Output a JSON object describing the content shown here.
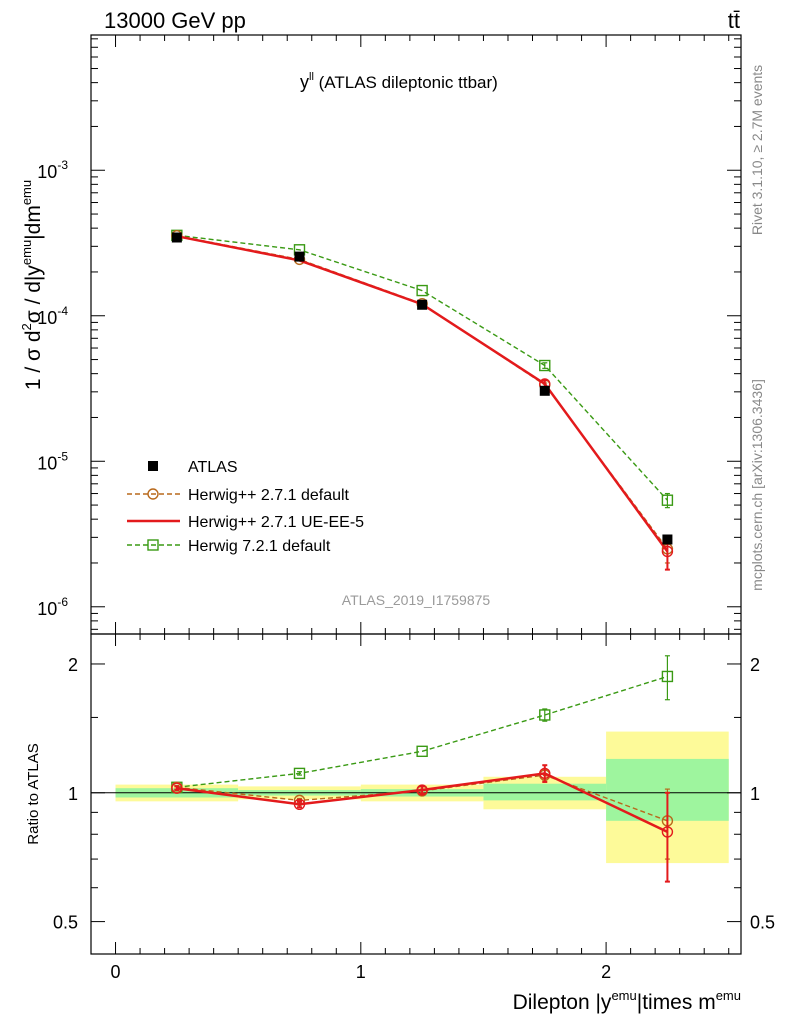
{
  "header": {
    "energy_label": "13000 GeV pp",
    "process_label": "tt̄"
  },
  "side_labels": {
    "rivet": "Rivet 3.1.10, ≥ 2.7M events",
    "source": "mcplots.cern.ch [arXiv:1306.3436]"
  },
  "chart_data": [
    {
      "type": "scatter",
      "panel": "main",
      "title_main": "y",
      "title_sup": "ll",
      "title_rest": " (ATLAS dileptonic ttbar)",
      "ylabel": "1 / σ  d²σ / d|y^emu|dm^emu",
      "ylabel_parts": {
        "p1": "1 / σ  d",
        "s1": "2",
        "p2": "σ / d|y",
        "s2": "emu",
        "p3": "|dm",
        "s3": "emu"
      },
      "xlabel_parts": {
        "p1": "Dilepton |y",
        "s1": "emu",
        "p2": "|times m",
        "s2": "emu"
      },
      "yscale": "log",
      "ylim": [
        6.5e-07,
        0.0085
      ],
      "xlim": [
        -0.1,
        2.55
      ],
      "x_ticks": [
        0,
        1,
        2
      ],
      "y_ticks": [
        {
          "value": 0.001,
          "base": "10",
          "exp": "-3"
        },
        {
          "value": 0.0001,
          "base": "10",
          "exp": "-4"
        },
        {
          "value": 1e-05,
          "base": "10",
          "exp": "-5"
        },
        {
          "value": 1e-06,
          "base": "10",
          "exp": "-6"
        }
      ],
      "watermark": "ATLAS_2019_I1759875",
      "legend_position": "lower-left",
      "x": [
        0.25,
        0.75,
        1.25,
        1.75,
        2.25
      ],
      "series": [
        {
          "name": "ATLAS",
          "style": "data",
          "color": "#000000",
          "values": [
            0.000345,
            0.000255,
            0.000119,
            3.05e-05,
            2.9e-06
          ]
        },
        {
          "name": "Herwig++ 2.7.1 default",
          "style": "circle-dashed",
          "color": "#b8691c",
          "values": [
            0.000355,
            0.000244,
            0.000121,
            3.35e-05,
            2.5e-06
          ],
          "errors": [
            4e-06,
            4e-06,
            2e-06,
            1e-06,
            5e-07
          ]
        },
        {
          "name": "Herwig++ 2.7.1 UE-EE-5",
          "style": "solid",
          "color": "#e31a1c",
          "values": [
            0.000352,
            0.00024,
            0.00012,
            3.4e-05,
            2.4e-06
          ],
          "errors": [
            4e-06,
            4e-06,
            2e-06,
            2e-06,
            6e-07
          ]
        },
        {
          "name": "Herwig 7.2.1 default",
          "style": "square-dashed",
          "color": "#3a9a14",
          "values": [
            0.000357,
            0.000284,
            0.000149,
            4.55e-05,
            5.4e-06
          ],
          "errors": [
            4e-06,
            4e-06,
            2e-06,
            2e-06,
            6e-07
          ]
        }
      ]
    },
    {
      "type": "scatter",
      "panel": "ratio",
      "ylabel": "Ratio to ATLAS",
      "yscale": "log",
      "ylim": [
        0.42,
        2.35
      ],
      "y_ticks": [
        0.5,
        1,
        2
      ],
      "y_tick_labels": [
        "0.5",
        "1",
        "2"
      ],
      "x": [
        0.25,
        0.75,
        1.25,
        1.75,
        2.25
      ],
      "bands": [
        {
          "x_low": 0.0,
          "x_high": 0.5,
          "inner": [
            0.975,
            1.025
          ],
          "outer": [
            0.955,
            1.045
          ]
        },
        {
          "x_low": 0.5,
          "x_high": 1.0,
          "inner": [
            0.985,
            1.015
          ],
          "outer": [
            0.965,
            1.035
          ]
        },
        {
          "x_low": 1.0,
          "x_high": 1.5,
          "inner": [
            0.98,
            1.02
          ],
          "outer": [
            0.955,
            1.045
          ]
        },
        {
          "x_low": 1.5,
          "x_high": 2.0,
          "inner": [
            0.96,
            1.05
          ],
          "outer": [
            0.915,
            1.09
          ]
        },
        {
          "x_low": 2.0,
          "x_high": 2.5,
          "inner": [
            0.86,
            1.2
          ],
          "outer": [
            0.685,
            1.39
          ]
        }
      ],
      "series": [
        {
          "name": "Herwig++ 2.7.1 default",
          "style": "circle-dashed",
          "color": "#b8691c",
          "values": [
            1.03,
            0.96,
            1.01,
            1.1,
            0.86
          ],
          "errors": [
            0.01,
            0.01,
            0.01,
            0.03,
            0.16
          ]
        },
        {
          "name": "Herwig++ 2.7.1 UE-EE-5",
          "style": "solid",
          "color": "#e31a1c",
          "values": [
            1.025,
            0.94,
            1.015,
            1.11,
            0.81
          ],
          "errors": [
            0.01,
            0.015,
            0.02,
            0.05,
            0.19
          ]
        },
        {
          "name": "Herwig 7.2.1 default",
          "style": "square-dashed",
          "color": "#3a9a14",
          "values": [
            1.03,
            1.11,
            1.25,
            1.52,
            1.87
          ],
          "errors": [
            0.01,
            0.01,
            0.01,
            0.05,
            0.22
          ]
        }
      ]
    }
  ]
}
